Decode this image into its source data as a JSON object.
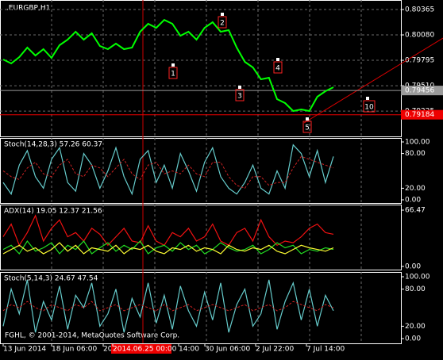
{
  "symbol": ".EURGBP,H1",
  "footer": "FGHL, © 2001-2014, MetaQuotes Software Corp.",
  "time_axis": {
    "labels": [
      "13 Jun 2014",
      "18 Jun 06:00",
      "20",
      "2014.06.25 00:00",
      "14:00",
      "30 Jun 06:00",
      "2 Jul 22:00",
      "7 Jul 14:00"
    ]
  },
  "price_panel": {
    "ylim": [
      0.78941,
      0.80472
    ],
    "yticks": [
      0.80365,
      {
        "value": 0.8008,
        "label": "0.80080"
      },
      0.79795,
      {
        "value": 0.7951,
        "label": "0.79510"
      },
      0.79225
    ],
    "color": "#00ff00",
    "values": [
      0.79804,
      0.7976,
      0.79831,
      0.79938,
      0.79849,
      0.7992,
      0.79822,
      0.79965,
      0.80027,
      0.80116,
      0.80027,
      0.80098,
      0.79956,
      0.7992,
      0.79982,
      0.7992,
      0.79938,
      0.80116,
      0.80205,
      0.8016,
      0.80249,
      0.80205,
      0.80071,
      0.80116,
      0.80027,
      0.8016,
      0.80223,
      0.80116,
      0.80134,
      0.79938,
      0.79778,
      0.79715,
      0.79582,
      0.796,
      0.79359,
      0.79315,
      0.79226,
      0.79244,
      0.79226,
      0.79386,
      0.79448,
      0.79493
    ],
    "current_price": 0.79456,
    "line_price": 0.79184,
    "markers": [
      "1",
      "2",
      "3",
      "4",
      "5",
      "10"
    ]
  },
  "indicators": [
    {
      "title": "Stoch(14,28,3) 57.26 60.37",
      "ylim": [
        0,
        100
      ],
      "yticks": [
        {
          "value": 100,
          "label": "100.00"
        },
        {
          "value": 80,
          "label": "80.00"
        },
        {
          "value": 20,
          "label": "20.00"
        },
        {
          "value": 0,
          "label": "0.00"
        }
      ],
      "series": [
        {
          "color": "#66cccc",
          "values": [
            30,
            10,
            60,
            85,
            40,
            20,
            70,
            90,
            30,
            15,
            80,
            60,
            20,
            50,
            90,
            40,
            10,
            70,
            85,
            30,
            60,
            20,
            80,
            50,
            15,
            65,
            90,
            40,
            20,
            10,
            30,
            60,
            20,
            10,
            50,
            20,
            95,
            80,
            40,
            85,
            30,
            75
          ]
        },
        {
          "color": "#cc2222",
          "dashed": true,
          "values": [
            50,
            40,
            35,
            55,
            65,
            45,
            40,
            60,
            70,
            45,
            40,
            60,
            55,
            40,
            55,
            70,
            45,
            35,
            60,
            65,
            45,
            50,
            45,
            60,
            45,
            40,
            65,
            65,
            40,
            25,
            20,
            40,
            40,
            25,
            30,
            30,
            55,
            75,
            70,
            65,
            60,
            55
          ]
        }
      ]
    },
    {
      "title": "ADX(14) 19.05 12.37 21.56",
      "ylim": [
        0,
        66.47
      ],
      "yticks": [
        66.47,
        {
          "value": 0,
          "label": "0.00"
        }
      ],
      "series": [
        {
          "color": "#ee1111",
          "values": [
            35,
            50,
            25,
            40,
            60,
            30,
            45,
            55,
            35,
            40,
            30,
            45,
            38,
            25,
            35,
            45,
            30,
            28,
            48,
            30,
            25,
            40,
            35,
            45,
            30,
            35,
            50,
            30,
            25,
            40,
            45,
            30,
            55,
            35,
            25,
            30,
            28,
            35,
            45,
            50,
            40,
            38
          ]
        },
        {
          "color": "#22dd22",
          "values": [
            20,
            25,
            15,
            30,
            18,
            22,
            28,
            15,
            25,
            20,
            30,
            15,
            22,
            28,
            18,
            25,
            20,
            30,
            15,
            22,
            25,
            18,
            28,
            20,
            25,
            15,
            20,
            28,
            22,
            18,
            20,
            25,
            15,
            20,
            28,
            22,
            25,
            15,
            20,
            18,
            22,
            20
          ]
        },
        {
          "color": "#ffff33",
          "values": [
            15,
            20,
            25,
            18,
            22,
            15,
            20,
            28,
            18,
            25,
            15,
            22,
            20,
            18,
            25,
            15,
            22,
            20,
            25,
            18,
            15,
            22,
            20,
            25,
            18,
            22,
            20,
            15,
            25,
            20,
            18,
            22,
            20,
            25,
            18,
            15,
            20,
            25,
            22,
            20,
            18,
            22
          ]
        }
      ]
    },
    {
      "title": "Stoch(5,14,3) 24.67 47.54",
      "ylim": [
        0,
        100
      ],
      "yticks": [
        {
          "value": 100,
          "label": "100.00"
        },
        {
          "value": 80,
          "label": "80.00"
        },
        {
          "value": 20,
          "label": "20.00"
        },
        {
          "value": 0,
          "label": "0.00"
        }
      ],
      "series": [
        {
          "color": "#66cccc",
          "values": [
            20,
            80,
            40,
            95,
            10,
            60,
            30,
            85,
            15,
            70,
            50,
            90,
            20,
            40,
            80,
            10,
            65,
            35,
            90,
            25,
            70,
            15,
            85,
            45,
            20,
            75,
            30,
            90,
            10,
            55,
            80,
            20,
            40,
            95,
            15,
            60,
            90,
            30,
            80,
            20,
            70,
            45
          ]
        },
        {
          "color": "#cc2222",
          "dashed": true,
          "values": [
            45,
            55,
            50,
            60,
            50,
            45,
            55,
            50,
            45,
            55,
            50,
            60,
            45,
            50,
            55,
            45,
            50,
            55,
            50,
            45,
            55,
            45,
            50,
            55,
            45,
            50,
            55,
            50,
            45,
            50,
            55,
            45,
            50,
            55,
            45,
            50,
            60,
            55,
            50,
            45,
            55,
            50
          ]
        }
      ]
    }
  ]
}
